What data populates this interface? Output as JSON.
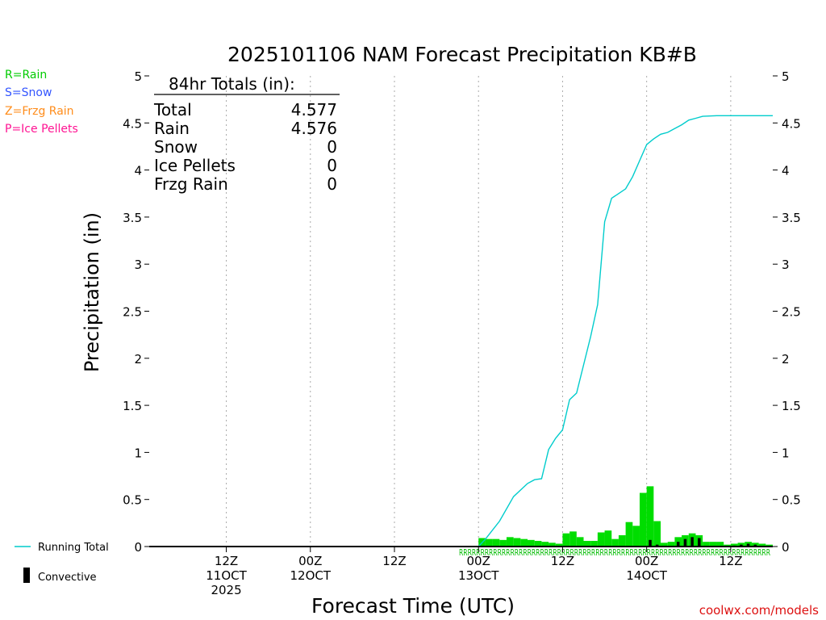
{
  "chart_data": {
    "type": "bar+line",
    "title": "2025101106 NAM Forecast Precipitation KB#B",
    "xlabel": "Forecast Time (UTC)",
    "ylabel": "Precipitation (in)",
    "ylim": [
      0,
      5
    ],
    "yticks": [
      "0",
      "0.5",
      "1",
      "1.5",
      "2",
      "2.5",
      "3",
      "3.5",
      "4",
      "4.5",
      "5"
    ],
    "xlim_hours": [
      -5,
      84
    ],
    "xticks": [
      {
        "hour": 6,
        "line1": "12Z",
        "line2": "11OCT",
        "line3": "2025"
      },
      {
        "hour": 18,
        "line1": "00Z",
        "line2": "12OCT",
        "line3": ""
      },
      {
        "hour": 30,
        "line1": "12Z",
        "line2": "",
        "line3": ""
      },
      {
        "hour": 42,
        "line1": "00Z",
        "line2": "13OCT",
        "line3": ""
      },
      {
        "hour": 54,
        "line1": "12Z",
        "line2": "",
        "line3": ""
      },
      {
        "hour": 66,
        "line1": "00Z",
        "line2": "14OCT",
        "line3": ""
      },
      {
        "hour": 78,
        "line1": "12Z",
        "line2": "",
        "line3": ""
      }
    ],
    "precip_type_codes": "RRRRRRRRRRRRRRRRRRRRRRRRRRRRRRRRRRRRRRRRRRRRRRRRRRRRRRRRRRRRRRRRRRRRRRRRR",
    "hourly_hours": [
      43,
      44,
      45,
      46,
      47,
      48,
      49,
      50,
      51,
      52,
      53,
      54,
      55,
      56,
      57,
      58,
      59,
      60,
      61,
      62,
      63,
      64,
      65,
      66,
      67,
      68,
      69,
      70,
      71,
      72,
      73,
      74,
      75,
      76,
      77,
      78,
      79,
      80,
      81,
      82,
      83,
      84
    ],
    "hourly_rain": [
      0.09,
      0.08,
      0.08,
      0.07,
      0.1,
      0.09,
      0.08,
      0.07,
      0.06,
      0.05,
      0.04,
      0.03,
      0.14,
      0.16,
      0.1,
      0.06,
      0.06,
      0.15,
      0.17,
      0.08,
      0.12,
      0.26,
      0.22,
      0.57,
      0.64,
      0.27,
      0.04,
      0.05,
      0.1,
      0.12,
      0.14,
      0.12,
      0.05,
      0.05,
      0.05,
      0.02,
      0.03,
      0.04,
      0.05,
      0.04,
      0.03,
      0.02
    ],
    "hourly_convective": [
      0,
      0,
      0,
      0,
      0,
      0,
      0,
      0,
      0,
      0,
      0,
      0,
      0,
      0,
      0,
      0,
      0,
      0,
      0,
      0,
      0,
      0,
      0,
      0,
      0.07,
      0.02,
      0,
      0,
      0.05,
      0.08,
      0.1,
      0.09,
      0,
      0,
      0,
      0,
      0.01,
      0.02,
      0.03,
      0.02,
      0,
      0
    ],
    "running_total": {
      "x": [
        -4,
        42,
        43,
        45,
        47,
        49,
        50,
        51,
        52,
        53,
        54,
        55,
        56,
        58,
        59,
        60,
        61,
        62,
        63,
        64,
        65,
        66,
        67,
        68,
        69,
        70,
        71,
        72,
        73,
        74,
        76,
        77,
        78,
        79,
        80,
        81,
        82,
        83,
        84
      ],
      "y": [
        0,
        0,
        0.08,
        0.27,
        0.53,
        0.67,
        0.71,
        0.72,
        1.03,
        1.15,
        1.24,
        1.56,
        1.63,
        2.23,
        2.57,
        3.45,
        3.7,
        3.75,
        3.8,
        3.93,
        4.1,
        4.27,
        4.33,
        4.38,
        4.4,
        4.44,
        4.48,
        4.53,
        4.55,
        4.57,
        4.577,
        4.577,
        4.577,
        4.577,
        4.577,
        4.577,
        4.577,
        4.577,
        4.577
      ]
    },
    "type_legend": [
      {
        "label": "R=Rain",
        "color": "#00cc00"
      },
      {
        "label": "S=Snow",
        "color": "#3355ff"
      },
      {
        "label": "Z=Frzg Rain",
        "color": "#ff8c1a"
      },
      {
        "label": "P=Ice Pellets",
        "color": "#ff1493"
      }
    ],
    "series_legend": [
      {
        "label": "Running Total",
        "color": "#00cccc"
      },
      {
        "label": "Convective",
        "color": "#000000"
      }
    ],
    "totals_box": {
      "heading": "84hr Totals (in):",
      "rows": [
        {
          "label": "Total",
          "value": "4.577"
        },
        {
          "label": "Rain",
          "value": "4.576"
        },
        {
          "label": "Snow",
          "value": "0"
        },
        {
          "label": "Ice Pellets",
          "value": "0"
        },
        {
          "label": "Frzg Rain",
          "value": "0"
        }
      ]
    },
    "credit": "coolwx.com/models"
  },
  "colors": {
    "rain_bar": "#00dd00",
    "convective_bar": "#000000",
    "running_total": "#00cccc",
    "precip_code": "#00bb00",
    "credit": "#dd1111"
  }
}
